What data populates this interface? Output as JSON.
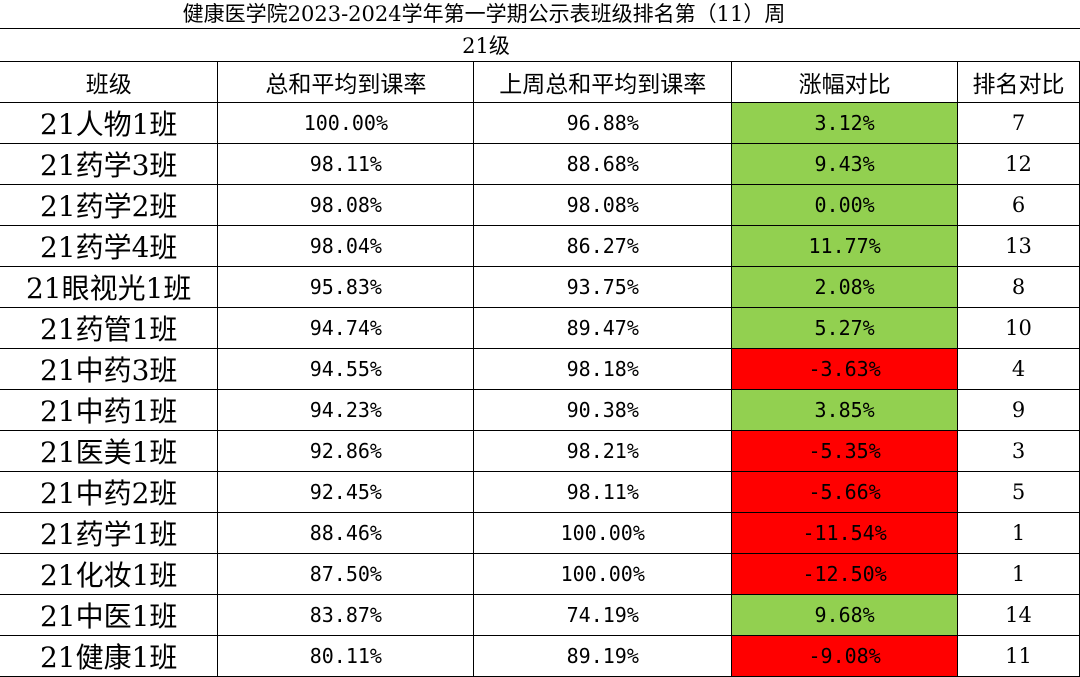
{
  "title": "健康医学院2023-2024学年第一学期公示表班级排名第（11）周",
  "subtitle": "21级",
  "headers": [
    "班级",
    "总和平均到课率",
    "上周总和平均到课率",
    "涨幅对比",
    "排名对比"
  ],
  "colors": {
    "increase": "#92d050",
    "decrease": "#ff0000"
  },
  "rows": [
    {
      "cls": "21人物1班",
      "avg": "100.00%",
      "last": "96.88%",
      "change": "3.12%",
      "rank": "7",
      "dir": "pos"
    },
    {
      "cls": "21药学3班",
      "avg": "98.11%",
      "last": "88.68%",
      "change": "9.43%",
      "rank": "12",
      "dir": "pos"
    },
    {
      "cls": "21药学2班",
      "avg": "98.08%",
      "last": "98.08%",
      "change": "0.00%",
      "rank": "6",
      "dir": "pos"
    },
    {
      "cls": "21药学4班",
      "avg": "98.04%",
      "last": "86.27%",
      "change": "11.77%",
      "rank": "13",
      "dir": "pos"
    },
    {
      "cls": "21眼视光1班",
      "avg": "95.83%",
      "last": "93.75%",
      "change": "2.08%",
      "rank": "8",
      "dir": "pos"
    },
    {
      "cls": "21药管1班",
      "avg": "94.74%",
      "last": "89.47%",
      "change": "5.27%",
      "rank": "10",
      "dir": "pos"
    },
    {
      "cls": "21中药3班",
      "avg": "94.55%",
      "last": "98.18%",
      "change": "-3.63%",
      "rank": "4",
      "dir": "neg"
    },
    {
      "cls": "21中药1班",
      "avg": "94.23%",
      "last": "90.38%",
      "change": "3.85%",
      "rank": "9",
      "dir": "pos"
    },
    {
      "cls": "21医美1班",
      "avg": "92.86%",
      "last": "98.21%",
      "change": "-5.35%",
      "rank": "3",
      "dir": "neg"
    },
    {
      "cls": "21中药2班",
      "avg": "92.45%",
      "last": "98.11%",
      "change": "-5.66%",
      "rank": "5",
      "dir": "neg"
    },
    {
      "cls": "21药学1班",
      "avg": "88.46%",
      "last": "100.00%",
      "change": "-11.54%",
      "rank": "1",
      "dir": "neg"
    },
    {
      "cls": "21化妆1班",
      "avg": "87.50%",
      "last": "100.00%",
      "change": "-12.50%",
      "rank": "1",
      "dir": "neg"
    },
    {
      "cls": "21中医1班",
      "avg": "83.87%",
      "last": "74.19%",
      "change": "9.68%",
      "rank": "14",
      "dir": "pos"
    },
    {
      "cls": "21健康1班",
      "avg": "80.11%",
      "last": "89.19%",
      "change": "-9.08%",
      "rank": "11",
      "dir": "neg"
    }
  ]
}
